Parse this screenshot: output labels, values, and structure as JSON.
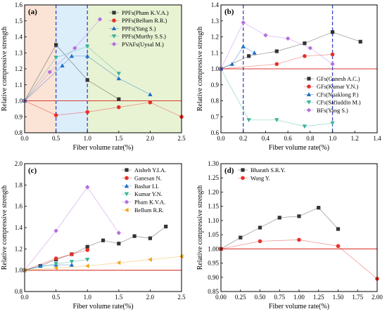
{
  "chart_data": [
    {
      "type": "line",
      "panel_label": "(a)",
      "xlabel": "Fiber volume rate(%)",
      "ylabel": "Relative compressive strength",
      "xlim": [
        0.0,
        2.5
      ],
      "ylim": [
        0.8,
        1.6
      ],
      "xticks": [
        "0.0",
        "0.5",
        "1.0",
        "1.5",
        "2.0",
        "2.5"
      ],
      "yticks": [
        "0.8",
        "0.9",
        "1.0",
        "1.1",
        "1.2",
        "1.3",
        "1.4",
        "1.5",
        "1.6"
      ],
      "shaded_regions": [
        {
          "from": 0.0,
          "to": 0.5,
          "color": "#fbe3d6"
        },
        {
          "from": 0.5,
          "to": 1.0,
          "color": "#ddeefb"
        },
        {
          "from": 1.0,
          "to": 2.5,
          "color": "#e8f3d4"
        }
      ],
      "vlines": [
        0.5,
        1.0
      ],
      "baseline": 1.0,
      "legend_position": "top-right",
      "series": [
        {
          "name": "PPFs(Pham K.V.A.)",
          "color": "#333333",
          "marker": "square",
          "points": [
            [
              0,
              1.0
            ],
            [
              0.5,
              1.35
            ],
            [
              1.0,
              1.13
            ],
            [
              1.5,
              1.01
            ]
          ]
        },
        {
          "name": "PPFs(Bellum R.R.)",
          "color": "#e8302a",
          "marker": "circle",
          "points": [
            [
              0,
              1.0
            ],
            [
              0.5,
              0.91
            ],
            [
              1.0,
              0.93
            ],
            [
              1.5,
              0.96
            ],
            [
              2.0,
              0.99
            ],
            [
              2.5,
              0.9
            ]
          ]
        },
        {
          "name": "PPFs(Yang S.)",
          "color": "#1f6fc5",
          "marker": "triangle",
          "points": [
            [
              0,
              1.0
            ],
            [
              0.6,
              1.22
            ],
            [
              0.75,
              1.28
            ],
            [
              1.0,
              1.28
            ],
            [
              1.5,
              1.14
            ],
            [
              2.0,
              1.04
            ]
          ]
        },
        {
          "name": "PPFs(Murthy S.S.)",
          "color": "#3ab39a",
          "marker": "triangle-down",
          "points": [
            [
              0,
              1.0
            ],
            [
              0.5,
              1.27
            ],
            [
              1.0,
              1.34
            ],
            [
              1.5,
              1.17
            ]
          ]
        },
        {
          "name": "PVAFs(Uysal M.)",
          "color": "#b46fe0",
          "marker": "diamond",
          "points": [
            [
              0,
              1.0
            ],
            [
              0.4,
              1.18
            ],
            [
              0.8,
              1.33
            ],
            [
              1.2,
              1.51
            ]
          ]
        }
      ]
    },
    {
      "type": "line",
      "panel_label": "(b)",
      "xlabel": "Fiber volume rate(%)",
      "ylabel": "Relative compressive strength",
      "xlim": [
        0.0,
        1.4
      ],
      "ylim": [
        0.6,
        1.4
      ],
      "xticks": [
        "0.0",
        "0.2",
        "0.4",
        "0.6",
        "0.8",
        "1.0",
        "1.2",
        "1.4"
      ],
      "yticks": [
        "0.6",
        "0.7",
        "0.8",
        "0.9",
        "1.0",
        "1.1",
        "1.2",
        "1.3",
        "1.4"
      ],
      "vlines": [
        0.2,
        1.0
      ],
      "baseline": 1.0,
      "legend_position": "bottom-right",
      "series": [
        {
          "name": "GFs(Ganesh A.C.)",
          "color": "#333333",
          "marker": "square",
          "points": [
            [
              0,
              1.0
            ],
            [
              0.25,
              1.08
            ],
            [
              0.5,
              1.11
            ],
            [
              0.75,
              1.16
            ],
            [
              1.0,
              1.23
            ],
            [
              1.25,
              1.17
            ]
          ]
        },
        {
          "name": "GFs(Kumar Y.N.)",
          "color": "#e8302a",
          "marker": "circle",
          "points": [
            [
              0,
              1.0
            ],
            [
              0.5,
              1.03
            ],
            [
              0.75,
              1.08
            ],
            [
              1.0,
              1.09
            ]
          ]
        },
        {
          "name": "CFs(Nuaklong P.)",
          "color": "#1f6fc5",
          "marker": "triangle",
          "points": [
            [
              0,
              1.0
            ],
            [
              0.1,
              1.03
            ],
            [
              0.2,
              1.14
            ],
            [
              0.3,
              1.1
            ]
          ]
        },
        {
          "name": "CFs(Safiuddin M.)",
          "color": "#3ab39a",
          "marker": "triangle-down",
          "points": [
            [
              0,
              1.0
            ],
            [
              0.25,
              0.68
            ],
            [
              0.5,
              0.68
            ],
            [
              0.75,
              0.64
            ],
            [
              1.0,
              0.66
            ]
          ]
        },
        {
          "name": "BFs(Yang S.)",
          "color": "#b46fe0",
          "marker": "diamond",
          "points": [
            [
              0,
              1.0
            ],
            [
              0.2,
              1.29
            ],
            [
              0.4,
              1.21
            ],
            [
              0.6,
              1.19
            ],
            [
              0.8,
              1.13
            ],
            [
              1.0,
              1.03
            ]
          ]
        }
      ]
    },
    {
      "type": "line",
      "panel_label": "(c)",
      "xlabel": "Fiber volume rate(%)",
      "ylabel": "Relative compressive strength",
      "xlim": [
        0.0,
        2.5
      ],
      "ylim": [
        0.8,
        2.0
      ],
      "xticks": [
        "0.0",
        "0.5",
        "1.0",
        "1.5",
        "2.0",
        "2.5"
      ],
      "yticks": [
        "0.8",
        "1.0",
        "1.2",
        "1.4",
        "1.6",
        "1.8",
        "2.0"
      ],
      "baseline": 1.0,
      "legend_position": "top-right",
      "series": [
        {
          "name": "Aisheh Y.I.A.",
          "color": "#333333",
          "marker": "square",
          "points": [
            [
              0,
              1.0
            ],
            [
              0.25,
              1.04
            ],
            [
              0.5,
              1.1
            ],
            [
              0.75,
              1.15
            ],
            [
              1.0,
              1.22
            ],
            [
              1.25,
              1.28
            ],
            [
              1.5,
              1.25
            ],
            [
              1.75,
              1.32
            ],
            [
              2.0,
              1.3
            ],
            [
              2.25,
              1.41
            ]
          ]
        },
        {
          "name": "Ganesan N.",
          "color": "#e8302a",
          "marker": "circle",
          "points": [
            [
              0,
              1.0
            ],
            [
              0.5,
              1.11
            ],
            [
              0.75,
              1.15
            ],
            [
              1.0,
              1.19
            ]
          ]
        },
        {
          "name": "Bashar I.I.",
          "color": "#1f6fc5",
          "marker": "triangle",
          "points": [
            [
              0,
              1.0
            ],
            [
              0.25,
              1.04
            ],
            [
              0.5,
              1.05
            ],
            [
              0.75,
              1.05
            ]
          ]
        },
        {
          "name": "Kumar Y.N.",
          "color": "#3ab39a",
          "marker": "triangle-down",
          "points": [
            [
              0,
              1.0
            ],
            [
              0.5,
              1.06
            ],
            [
              0.75,
              1.08
            ],
            [
              1.0,
              1.1
            ]
          ]
        },
        {
          "name": "Pham K.V.A.",
          "color": "#b46fe0",
          "marker": "diamond",
          "points": [
            [
              0,
              1.0
            ],
            [
              0.5,
              1.37
            ],
            [
              1.0,
              1.78
            ],
            [
              1.5,
              1.35
            ]
          ]
        },
        {
          "name": "Bellum R.R.",
          "color": "#f0a81e",
          "marker": "triangle-left",
          "points": [
            [
              0,
              1.0
            ],
            [
              0.5,
              1.02
            ],
            [
              1.0,
              1.04
            ],
            [
              1.5,
              1.07
            ],
            [
              2.0,
              1.1
            ],
            [
              2.5,
              1.13
            ]
          ]
        }
      ]
    },
    {
      "type": "line",
      "panel_label": "(d)",
      "xlabel": "Fiber volume rate(%)",
      "ylabel": "Relative compressive strength",
      "xlim": [
        0.0,
        2.0
      ],
      "ylim": [
        0.85,
        1.3
      ],
      "xticks": [
        "0.00",
        "0.25",
        "0.50",
        "0.75",
        "1.00",
        "1.25",
        "1.50",
        "1.75",
        "2.00"
      ],
      "yticks": [
        "0.85",
        "0.90",
        "0.95",
        "1.00",
        "1.05",
        "1.10",
        "1.15",
        "1.20",
        "1.25",
        "1.30"
      ],
      "baseline": 1.0,
      "legend_position": "top-left",
      "series": [
        {
          "name": "Bharath S.R.Y.",
          "color": "#333333",
          "marker": "square",
          "points": [
            [
              0,
              1.0
            ],
            [
              0.25,
              1.04
            ],
            [
              0.5,
              1.075
            ],
            [
              0.75,
              1.11
            ],
            [
              1.0,
              1.115
            ],
            [
              1.25,
              1.145
            ],
            [
              1.5,
              1.07
            ]
          ]
        },
        {
          "name": "Wang Y.",
          "color": "#e8302a",
          "marker": "circle",
          "points": [
            [
              0,
              1.0
            ],
            [
              0.5,
              1.027
            ],
            [
              1.0,
              1.032
            ],
            [
              1.5,
              1.01
            ],
            [
              2.0,
              0.895
            ]
          ]
        }
      ]
    }
  ]
}
